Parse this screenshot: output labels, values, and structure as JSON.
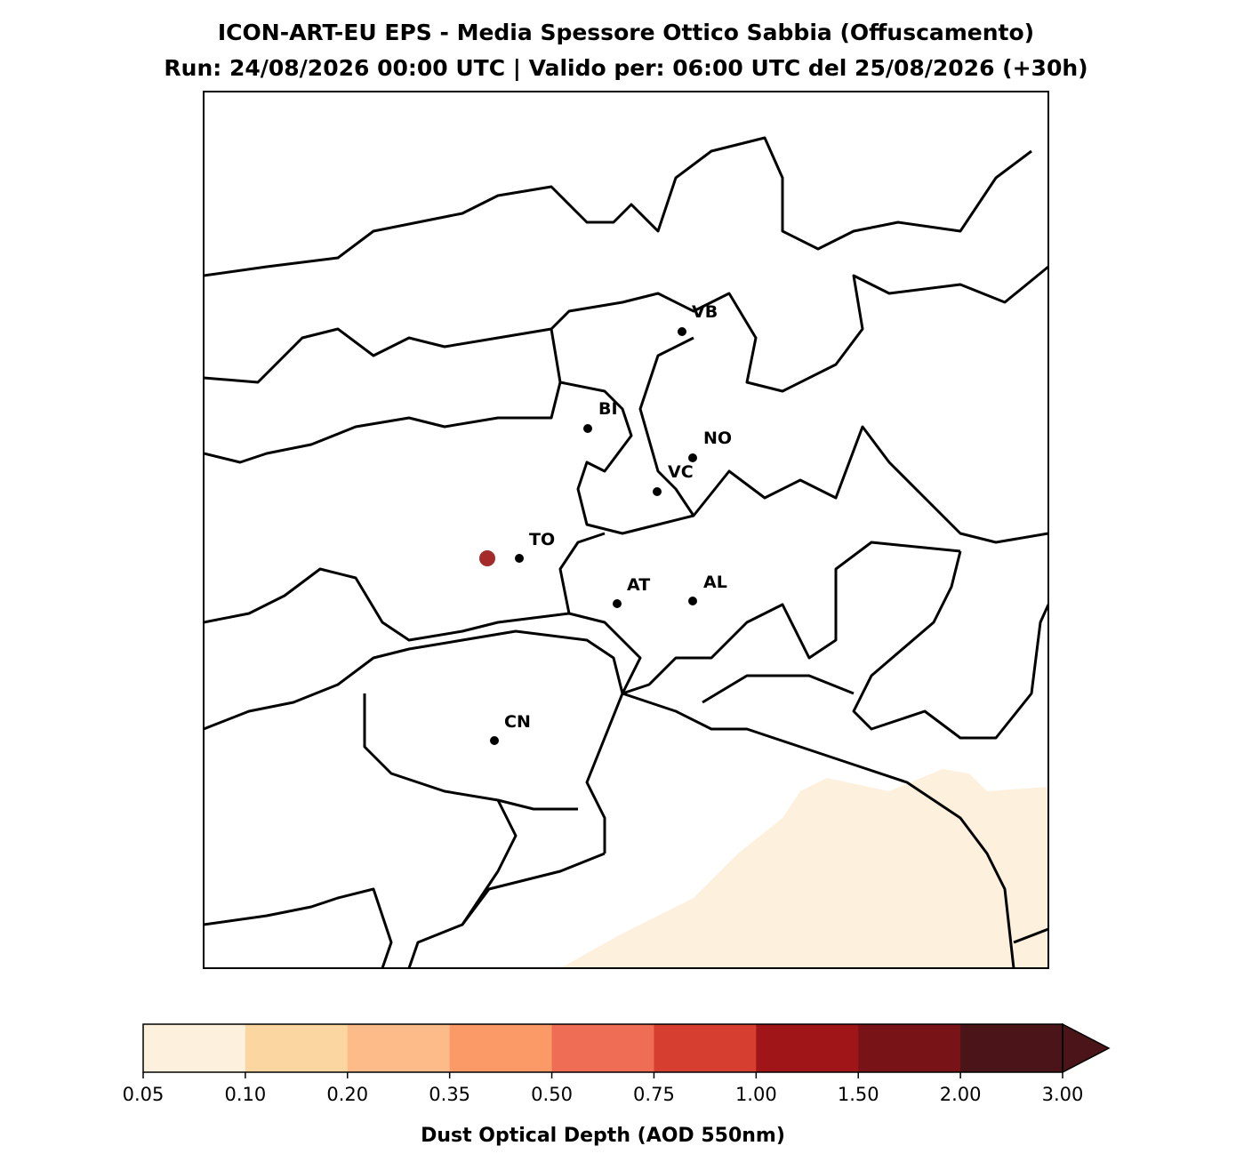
{
  "title": "ICON-ART-EU EPS - Media Spessore Ottico Sabbia (Offuscamento)",
  "subtitle": "Run: 24/08/2026 00:00 UTC | Valido per: 06:00 UTC del 25/08/2026 (+30h)",
  "cities": [
    {
      "label": "VB"
    },
    {
      "label": "BI"
    },
    {
      "label": "NO"
    },
    {
      "label": "VC"
    },
    {
      "label": "TO"
    },
    {
      "label": "AT"
    },
    {
      "label": "AL"
    },
    {
      "label": "CN"
    }
  ],
  "colorbar": {
    "label": "Dust Optical Depth (AOD 550nm)",
    "ticks": [
      0.05,
      {
        "value": 0.1,
        "label": "0.10"
      },
      {
        "value": 0.2,
        "label": "0.20"
      },
      0.35,
      {
        "value": 0.5,
        "label": "0.50"
      },
      0.75,
      {
        "value": 1,
        "label": "1.00"
      },
      {
        "value": 1.5,
        "label": "1.50"
      },
      {
        "value": 2,
        "label": "2.00"
      },
      {
        "value": 3,
        "label": "3.00"
      }
    ],
    "colors": [
      "#fdf0dc",
      "#fcd6a0",
      "#fcbb88",
      "#fb9a67",
      "#ef6d55",
      "#d63e30",
      "#a01518",
      "#781417",
      "#4b1419"
    ],
    "extend_color": "#4b1419"
  }
}
